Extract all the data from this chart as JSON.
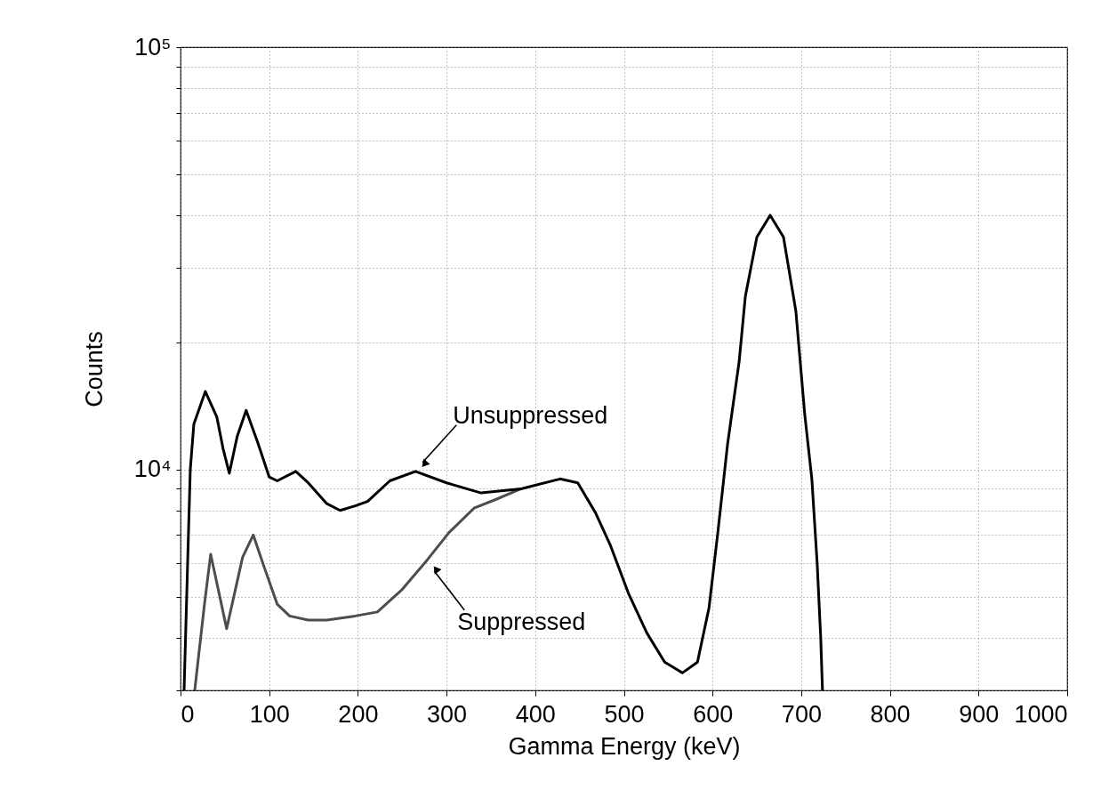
{
  "chart_data": {
    "type": "line",
    "xlabel": "Gamma Energy (keV)",
    "ylabel": "Counts",
    "log": true,
    "grid": true,
    "xlim": [
      0,
      1000
    ],
    "xticks": [
      0,
      100,
      200,
      300,
      400,
      500,
      600,
      700,
      800,
      900,
      1000
    ],
    "ylim": [
      3000,
      100000
    ],
    "yticks": [
      {
        "value": 3000,
        "label": null
      },
      {
        "value": 4000,
        "label": null
      },
      {
        "value": 5000,
        "label": null
      },
      {
        "value": 6000,
        "label": null
      },
      {
        "value": 7000,
        "label": null
      },
      {
        "value": 8000,
        "label": null
      },
      {
        "value": 9000,
        "label": null
      },
      {
        "value": 10000,
        "label": "10⁴"
      },
      {
        "value": 20000,
        "label": null
      },
      {
        "value": 30000,
        "label": null
      },
      {
        "value": 40000,
        "label": null
      },
      {
        "value": 50000,
        "label": null
      },
      {
        "value": 60000,
        "label": null
      },
      {
        "value": 70000,
        "label": null
      },
      {
        "value": 80000,
        "label": null
      },
      {
        "value": 90000,
        "label": null
      },
      {
        "value": 100000,
        "label": "10⁵"
      }
    ],
    "series": [
      {
        "color": "#4d4d4d",
        "x": [
          16,
          27,
          34,
          52,
          70,
          82,
          94,
          109,
          123,
          144,
          165,
          197,
          222,
          250,
          278,
          303,
          331,
          356,
          384
        ],
        "values": [
          3000,
          4800,
          6300,
          4200,
          6200,
          7000,
          5900,
          4800,
          4500,
          4400,
          4400,
          4500,
          4600,
          5200,
          6100,
          7100,
          8100,
          8500,
          9000
        ]
      },
      {
        "color": "#000000",
        "x": [
          4,
          8,
          11,
          15,
          28,
          41,
          48,
          55,
          64,
          74,
          87,
          100,
          109,
          130,
          144,
          165,
          180,
          197,
          211,
          236,
          265,
          300,
          339,
          384,
          428,
          448,
          468,
          485,
          505,
          526,
          546,
          566,
          583,
          596,
          606,
          617,
          630,
          637,
          650,
          665,
          680,
          694,
          704,
          712,
          718,
          722,
          724
        ],
        "values": [
          3000,
          6000,
          10000,
          12800,
          15300,
          13300,
          11200,
          9800,
          12000,
          13800,
          11600,
          9600,
          9400,
          9900,
          9300,
          8300,
          8000,
          8200,
          8400,
          9400,
          9900,
          9300,
          8800,
          9000,
          9500,
          9300,
          7900,
          6600,
          5100,
          4100,
          3500,
          3300,
          3500,
          4700,
          7100,
          11500,
          18000,
          25700,
          35500,
          40000,
          35500,
          23700,
          13500,
          9500,
          6000,
          4000,
          3000
        ]
      }
    ],
    "annotations": [
      {
        "text": "Unsuppressed",
        "x": 265,
        "y": 9900
      },
      {
        "text": "Suppressed",
        "x": 278,
        "y": 6100
      }
    ]
  }
}
